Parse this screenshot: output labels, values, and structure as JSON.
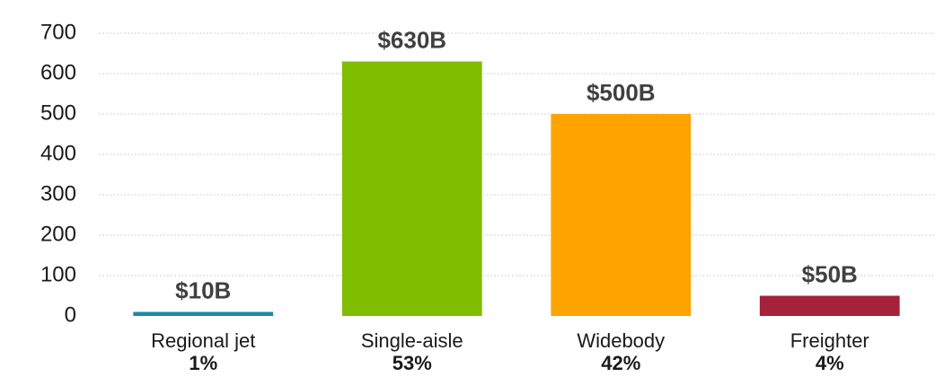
{
  "chart_data": {
    "type": "bar",
    "categories": [
      "Regional jet",
      "Single-aisle",
      "Widebody",
      "Freighter"
    ],
    "category_sublabels": [
      "1%",
      "53%",
      "42%",
      "4%"
    ],
    "values": [
      10,
      630,
      500,
      50
    ],
    "value_labels": [
      "$10B",
      "$630B",
      "$500B",
      "$50B"
    ],
    "colors": [
      "#1a8aa8",
      "#80bc00",
      "#ffa300",
      "#a6213a"
    ],
    "ylim": [
      0,
      700
    ],
    "yticks": [
      0,
      100,
      200,
      300,
      400,
      500,
      600,
      700
    ],
    "grid": true
  }
}
